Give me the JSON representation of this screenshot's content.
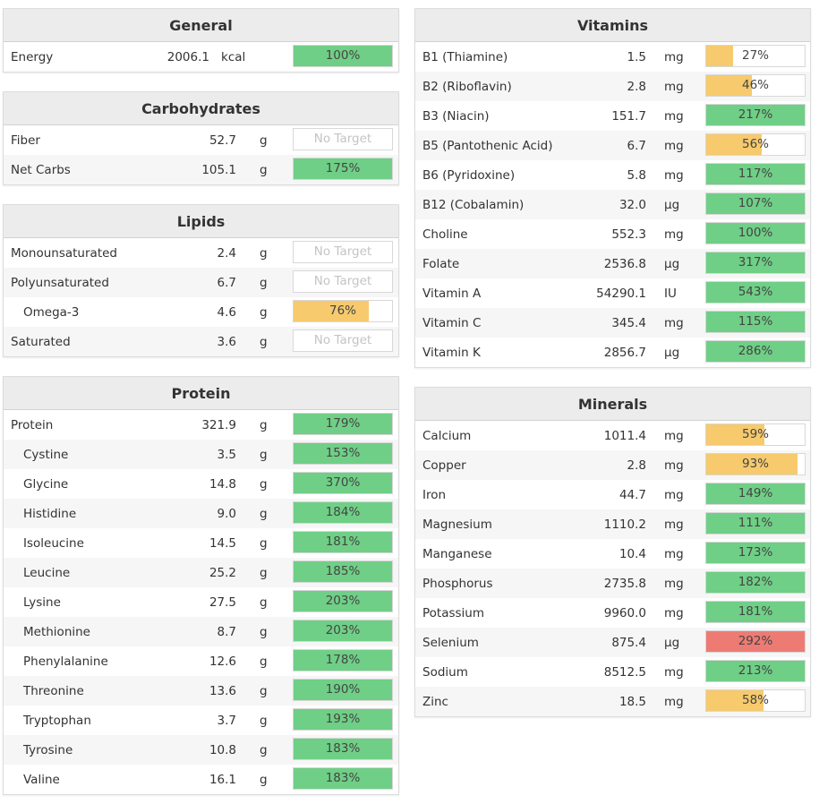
{
  "left": [
    {
      "key": "general",
      "title": "General",
      "rows": [
        {
          "name": "Energy",
          "value": "2006.1",
          "unit": "kcal",
          "pct": 100,
          "label": "100%",
          "color": "green",
          "sub": false
        }
      ]
    },
    {
      "key": "carbohydrates",
      "title": "Carbohydrates",
      "rows": [
        {
          "name": "Fiber",
          "value": "52.7",
          "unit": "g",
          "pct": 0,
          "label": "No Target",
          "color": "none",
          "sub": false
        },
        {
          "name": "Net Carbs",
          "value": "105.1",
          "unit": "g",
          "pct": 175,
          "label": "175%",
          "color": "green",
          "sub": false
        }
      ]
    },
    {
      "key": "lipids",
      "title": "Lipids",
      "rows": [
        {
          "name": "Monounsaturated",
          "value": "2.4",
          "unit": "g",
          "pct": 0,
          "label": "No Target",
          "color": "none",
          "sub": false
        },
        {
          "name": "Polyunsaturated",
          "value": "6.7",
          "unit": "g",
          "pct": 0,
          "label": "No Target",
          "color": "none",
          "sub": false
        },
        {
          "name": "Omega-3",
          "value": "4.6",
          "unit": "g",
          "pct": 76,
          "label": "76%",
          "color": "yellow",
          "sub": true
        },
        {
          "name": "Saturated",
          "value": "3.6",
          "unit": "g",
          "pct": 0,
          "label": "No Target",
          "color": "none",
          "sub": false
        }
      ]
    },
    {
      "key": "protein",
      "title": "Protein",
      "rows": [
        {
          "name": "Protein",
          "value": "321.9",
          "unit": "g",
          "pct": 179,
          "label": "179%",
          "color": "green",
          "sub": false
        },
        {
          "name": "Cystine",
          "value": "3.5",
          "unit": "g",
          "pct": 153,
          "label": "153%",
          "color": "green",
          "sub": true
        },
        {
          "name": "Glycine",
          "value": "14.8",
          "unit": "g",
          "pct": 370,
          "label": "370%",
          "color": "green",
          "sub": true
        },
        {
          "name": "Histidine",
          "value": "9.0",
          "unit": "g",
          "pct": 184,
          "label": "184%",
          "color": "green",
          "sub": true
        },
        {
          "name": "Isoleucine",
          "value": "14.5",
          "unit": "g",
          "pct": 181,
          "label": "181%",
          "color": "green",
          "sub": true
        },
        {
          "name": "Leucine",
          "value": "25.2",
          "unit": "g",
          "pct": 185,
          "label": "185%",
          "color": "green",
          "sub": true
        },
        {
          "name": "Lysine",
          "value": "27.5",
          "unit": "g",
          "pct": 203,
          "label": "203%",
          "color": "green",
          "sub": true
        },
        {
          "name": "Methionine",
          "value": "8.7",
          "unit": "g",
          "pct": 203,
          "label": "203%",
          "color": "green",
          "sub": true
        },
        {
          "name": "Phenylalanine",
          "value": "12.6",
          "unit": "g",
          "pct": 178,
          "label": "178%",
          "color": "green",
          "sub": true
        },
        {
          "name": "Threonine",
          "value": "13.6",
          "unit": "g",
          "pct": 190,
          "label": "190%",
          "color": "green",
          "sub": true
        },
        {
          "name": "Tryptophan",
          "value": "3.7",
          "unit": "g",
          "pct": 193,
          "label": "193%",
          "color": "green",
          "sub": true
        },
        {
          "name": "Tyrosine",
          "value": "10.8",
          "unit": "g",
          "pct": 183,
          "label": "183%",
          "color": "green",
          "sub": true
        },
        {
          "name": "Valine",
          "value": "16.1",
          "unit": "g",
          "pct": 183,
          "label": "183%",
          "color": "green",
          "sub": true
        }
      ]
    }
  ],
  "right": [
    {
      "key": "vitamins",
      "title": "Vitamins",
      "rows": [
        {
          "name": "B1 (Thiamine)",
          "value": "1.5",
          "unit": "mg",
          "pct": 27,
          "label": "27%",
          "color": "yellow",
          "sub": false
        },
        {
          "name": "B2 (Riboflavin)",
          "value": "2.8",
          "unit": "mg",
          "pct": 46,
          "label": "46%",
          "color": "yellow",
          "sub": false
        },
        {
          "name": "B3 (Niacin)",
          "value": "151.7",
          "unit": "mg",
          "pct": 217,
          "label": "217%",
          "color": "green",
          "sub": false
        },
        {
          "name": "B5 (Pantothenic Acid)",
          "value": "6.7",
          "unit": "mg",
          "pct": 56,
          "label": "56%",
          "color": "yellow",
          "sub": false
        },
        {
          "name": "B6 (Pyridoxine)",
          "value": "5.8",
          "unit": "mg",
          "pct": 117,
          "label": "117%",
          "color": "green",
          "sub": false
        },
        {
          "name": "B12 (Cobalamin)",
          "value": "32.0",
          "unit": "µg",
          "pct": 107,
          "label": "107%",
          "color": "green",
          "sub": false
        },
        {
          "name": "Choline",
          "value": "552.3",
          "unit": "mg",
          "pct": 100,
          "label": "100%",
          "color": "green",
          "sub": false
        },
        {
          "name": "Folate",
          "value": "2536.8",
          "unit": "µg",
          "pct": 317,
          "label": "317%",
          "color": "green",
          "sub": false
        },
        {
          "name": "Vitamin A",
          "value": "54290.1",
          "unit": "IU",
          "pct": 543,
          "label": "543%",
          "color": "green",
          "sub": false
        },
        {
          "name": "Vitamin C",
          "value": "345.4",
          "unit": "mg",
          "pct": 115,
          "label": "115%",
          "color": "green",
          "sub": false
        },
        {
          "name": "Vitamin K",
          "value": "2856.7",
          "unit": "µg",
          "pct": 286,
          "label": "286%",
          "color": "green",
          "sub": false
        }
      ]
    },
    {
      "key": "minerals",
      "title": "Minerals",
      "rows": [
        {
          "name": "Calcium",
          "value": "1011.4",
          "unit": "mg",
          "pct": 59,
          "label": "59%",
          "color": "yellow",
          "sub": false
        },
        {
          "name": "Copper",
          "value": "2.8",
          "unit": "mg",
          "pct": 93,
          "label": "93%",
          "color": "yellow",
          "sub": false
        },
        {
          "name": "Iron",
          "value": "44.7",
          "unit": "mg",
          "pct": 149,
          "label": "149%",
          "color": "green",
          "sub": false
        },
        {
          "name": "Magnesium",
          "value": "1110.2",
          "unit": "mg",
          "pct": 111,
          "label": "111%",
          "color": "green",
          "sub": false
        },
        {
          "name": "Manganese",
          "value": "10.4",
          "unit": "mg",
          "pct": 173,
          "label": "173%",
          "color": "green",
          "sub": false
        },
        {
          "name": "Phosphorus",
          "value": "2735.8",
          "unit": "mg",
          "pct": 182,
          "label": "182%",
          "color": "green",
          "sub": false
        },
        {
          "name": "Potassium",
          "value": "9960.0",
          "unit": "mg",
          "pct": 181,
          "label": "181%",
          "color": "green",
          "sub": false
        },
        {
          "name": "Selenium",
          "value": "875.4",
          "unit": "µg",
          "pct": 292,
          "label": "292%",
          "color": "red",
          "sub": false
        },
        {
          "name": "Sodium",
          "value": "8512.5",
          "unit": "mg",
          "pct": 213,
          "label": "213%",
          "color": "green",
          "sub": false
        },
        {
          "name": "Zinc",
          "value": "18.5",
          "unit": "mg",
          "pct": 58,
          "label": "58%",
          "color": "yellow",
          "sub": false
        }
      ]
    }
  ],
  "colors": {
    "green": "#6fcf86",
    "yellow": "#f6ca6d",
    "red": "#ee7b73"
  }
}
